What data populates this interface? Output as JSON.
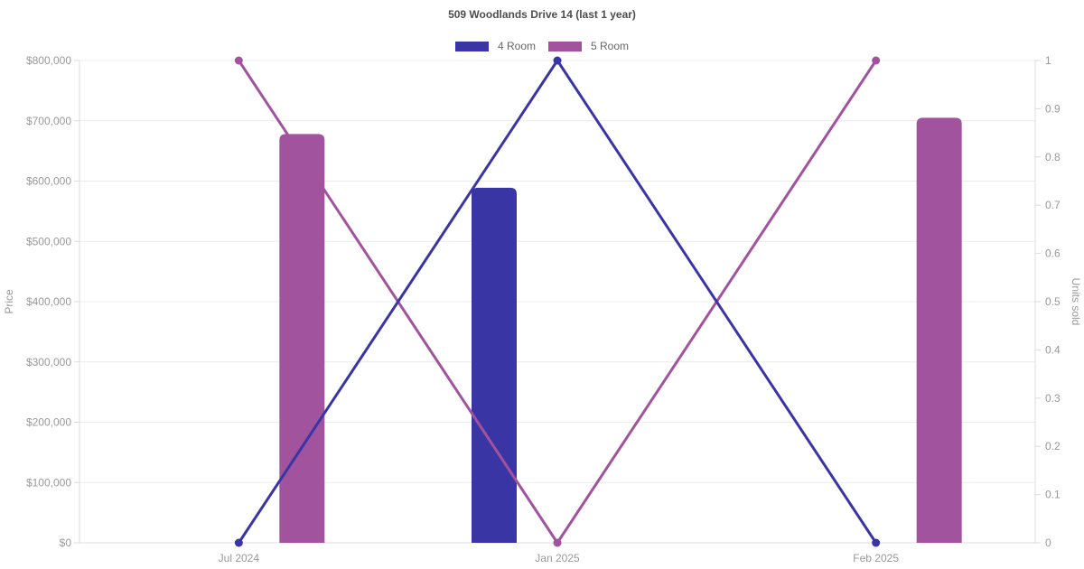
{
  "chart_data": {
    "type": "combo-bar-line",
    "title": "509 Woodlands Drive 14 (last 1 year)",
    "categories": [
      "Jul 2024",
      "Jan 2025",
      "Feb 2025"
    ],
    "series": [
      {
        "name": "4 Room",
        "chart_type": "bar",
        "axis": "left",
        "color": "#3a35a4",
        "values": [
          null,
          589000,
          null
        ]
      },
      {
        "name": "5 Room",
        "chart_type": "bar",
        "axis": "left",
        "color": "#a2539d",
        "values": [
          678000,
          null,
          705000
        ]
      },
      {
        "name": "4 Room",
        "chart_type": "line",
        "axis": "right",
        "color": "#3a35a4",
        "values": [
          0,
          1,
          0
        ]
      },
      {
        "name": "5 Room",
        "chart_type": "line",
        "axis": "right",
        "color": "#a2539d",
        "values": [
          1,
          0,
          1
        ]
      }
    ],
    "left_axis": {
      "label": "Price",
      "min": 0,
      "max": 800000,
      "step": 100000,
      "tick_prefix": "$"
    },
    "right_axis": {
      "label": "Units sold",
      "min": 0,
      "max": 1,
      "step": 0.1
    },
    "legend": [
      {
        "label": "4 Room",
        "color": "#3a35a4"
      },
      {
        "label": "5 Room",
        "color": "#a2539d"
      }
    ],
    "grid": "horizontal",
    "colors": {
      "gridline": "#ececec",
      "axis_line": "#dcdcdc",
      "tick_label": "#999999",
      "title": "#4d4d4d",
      "legend_text": "#666666",
      "background": "#ffffff"
    }
  }
}
